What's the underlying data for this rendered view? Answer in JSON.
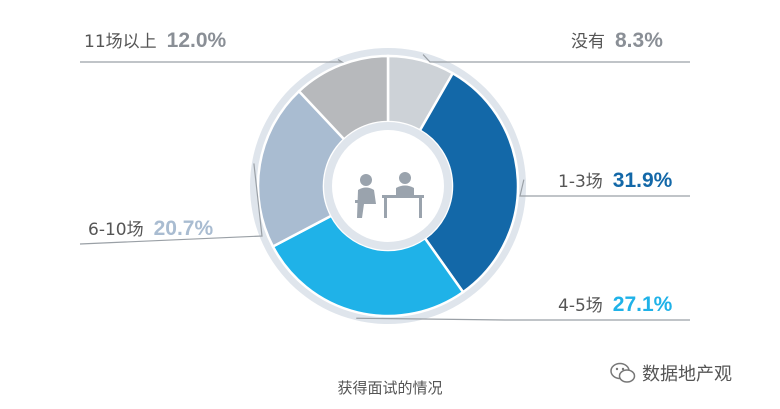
{
  "chart_data": {
    "type": "pie",
    "caption": "获得面试的情况",
    "slices": [
      {
        "label": "没有",
        "value": 8.3,
        "text": "8.3%",
        "color": "#cdd2d7",
        "pct_color": "#8a8f96"
      },
      {
        "label": "1-3场",
        "value": 31.9,
        "text": "31.9%",
        "color": "#1368a8",
        "pct_color": "#1368a8"
      },
      {
        "label": "4-5场",
        "value": 27.1,
        "text": "27.1%",
        "color": "#1fb2e8",
        "pct_color": "#1fb2e8"
      },
      {
        "label": "6-10场",
        "value": 20.7,
        "text": "20.7%",
        "color": "#a9bcd1",
        "pct_color": "#a9bcd1"
      },
      {
        "label": "11场以上",
        "value": 12.0,
        "text": "12.0%",
        "color": "#b7b9bc",
        "pct_color": "#8a8f96"
      }
    ]
  },
  "watermark": {
    "text": "数据地产观",
    "icon": "wechat-icon"
  },
  "center_icon": "interview-icon"
}
